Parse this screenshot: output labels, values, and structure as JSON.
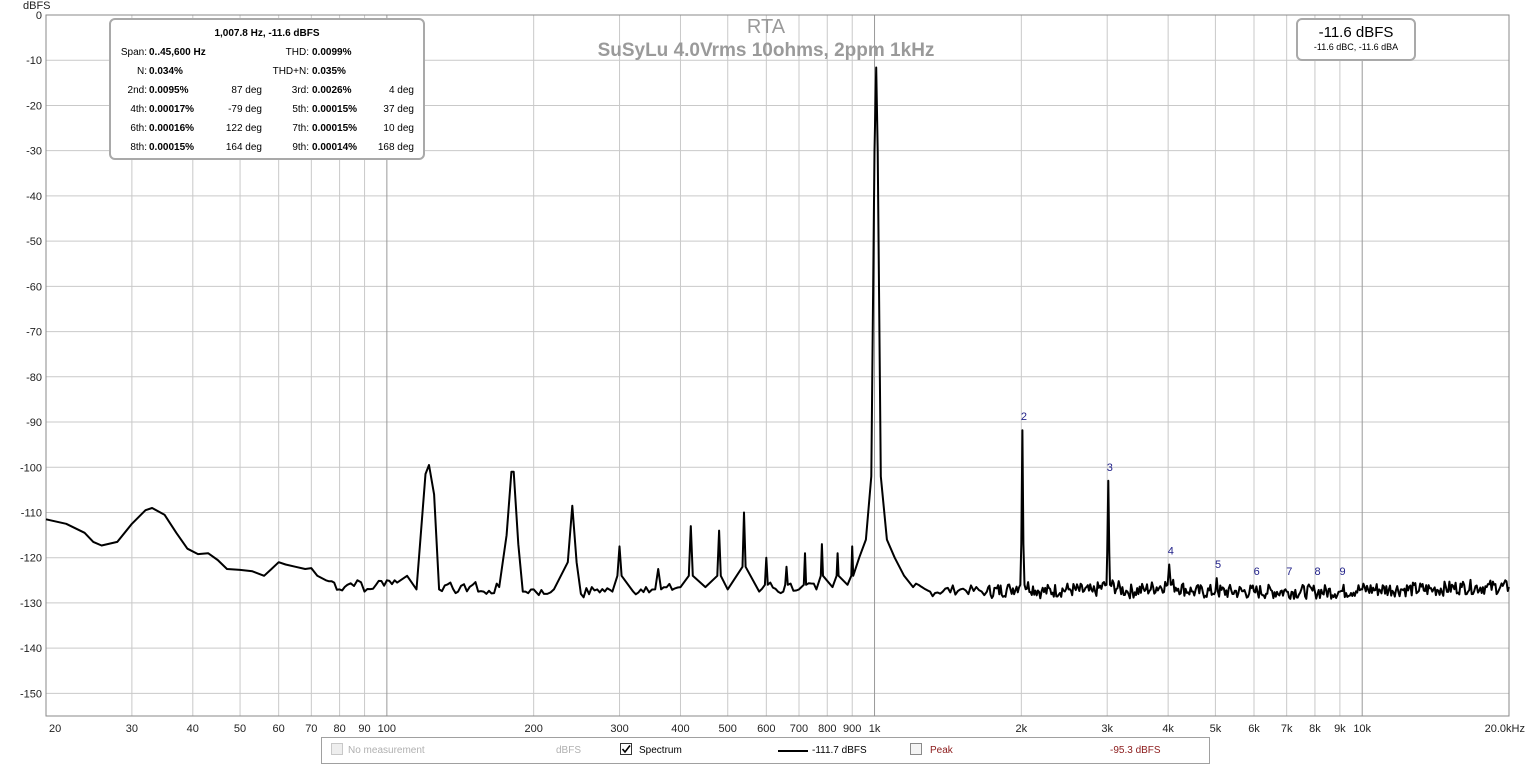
{
  "chart_data": {
    "type": "line",
    "title": "RTA",
    "subtitle": "SuSyLu 4.0Vrms 10ohms, 2ppm 1kHz",
    "ylabel": "dBFS",
    "xscale": "log",
    "xlim": [
      20,
      20000
    ],
    "ylim": [
      -155,
      0
    ],
    "x_tick_labels": [
      "20",
      "30",
      "40",
      "50",
      "60",
      "70",
      "80",
      "90",
      "100",
      "200",
      "300",
      "400",
      "500",
      "600",
      "700",
      "800",
      "900",
      "1k",
      "2k",
      "3k",
      "4k",
      "5k",
      "6k",
      "7k",
      "8k",
      "9k",
      "10k",
      "20.0kHz"
    ],
    "y_tick_labels": [
      "0",
      "-10",
      "-20",
      "-30",
      "-40",
      "-50",
      "-60",
      "-70",
      "-80",
      "-90",
      "-100",
      "-110",
      "-120",
      "-130",
      "-140",
      "-150"
    ],
    "grid": true,
    "series": [
      {
        "name": "Spectrum",
        "color": "#000000",
        "points": [
          [
            20,
            -111.5
          ],
          [
            22,
            -112.5
          ],
          [
            24,
            -114.5
          ],
          [
            25,
            -116.5
          ],
          [
            26,
            -117.3
          ],
          [
            28,
            -116.5
          ],
          [
            30,
            -112.5
          ],
          [
            32,
            -109.5
          ],
          [
            33,
            -109
          ],
          [
            35,
            -110.5
          ],
          [
            37,
            -114.5
          ],
          [
            39,
            -118
          ],
          [
            41,
            -119.2
          ],
          [
            43,
            -119
          ],
          [
            45,
            -120.5
          ],
          [
            47,
            -122.5
          ],
          [
            50,
            -122.7
          ],
          [
            53,
            -123
          ],
          [
            56,
            -124
          ],
          [
            58,
            -122.5
          ],
          [
            60,
            -121
          ],
          [
            62,
            -121.5
          ],
          [
            65,
            -122
          ],
          [
            68,
            -122.5
          ],
          [
            70,
            -122.3
          ],
          [
            72,
            -124
          ],
          [
            75,
            -125
          ],
          [
            78,
            -125.5
          ],
          [
            80,
            -127
          ],
          [
            83,
            -126
          ],
          [
            87,
            -125
          ],
          [
            90,
            -127.5
          ],
          [
            95,
            -126
          ],
          [
            100,
            -125
          ],
          [
            105,
            -125.5
          ],
          [
            110,
            -124
          ],
          [
            115,
            -127
          ],
          [
            120,
            -101.5
          ],
          [
            122,
            -99.5
          ],
          [
            125,
            -106
          ],
          [
            128,
            -127
          ],
          [
            135,
            -125.5
          ],
          [
            140,
            -127.5
          ],
          [
            150,
            -126
          ],
          [
            160,
            -128
          ],
          [
            170,
            -126.5
          ],
          [
            176,
            -115
          ],
          [
            180,
            -101
          ],
          [
            182,
            -101
          ],
          [
            186,
            -117
          ],
          [
            190,
            -127.5
          ],
          [
            200,
            -127
          ],
          [
            210,
            -128
          ],
          [
            220,
            -127
          ],
          [
            235,
            -121
          ],
          [
            240,
            -108.5
          ],
          [
            245,
            -121
          ],
          [
            250,
            -128
          ],
          [
            270,
            -127
          ],
          [
            290,
            -127.5
          ],
          [
            297,
            -124
          ],
          [
            300,
            -117.5
          ],
          [
            303,
            -124
          ],
          [
            320,
            -127.5
          ],
          [
            340,
            -126.5
          ],
          [
            355,
            -127
          ],
          [
            360,
            -122.5
          ],
          [
            365,
            -127
          ],
          [
            400,
            -126.5
          ],
          [
            416,
            -124
          ],
          [
            420,
            -113
          ],
          [
            424,
            -124
          ],
          [
            450,
            -126.5
          ],
          [
            476,
            -124
          ],
          [
            480,
            -114
          ],
          [
            484,
            -124
          ],
          [
            500,
            -127
          ],
          [
            536,
            -122
          ],
          [
            540,
            -110
          ],
          [
            544,
            -122
          ],
          [
            580,
            -127.5
          ],
          [
            596,
            -126
          ],
          [
            600,
            -120
          ],
          [
            604,
            -126
          ],
          [
            650,
            -127.5
          ],
          [
            656,
            -126
          ],
          [
            660,
            -122
          ],
          [
            664,
            -126
          ],
          [
            700,
            -127
          ],
          [
            716,
            -126
          ],
          [
            720,
            -119
          ],
          [
            724,
            -126
          ],
          [
            760,
            -127
          ],
          [
            776,
            -124
          ],
          [
            780,
            -117
          ],
          [
            784,
            -124
          ],
          [
            820,
            -126.5
          ],
          [
            836,
            -124
          ],
          [
            840,
            -119
          ],
          [
            844,
            -124
          ],
          [
            880,
            -126
          ],
          [
            896,
            -124
          ],
          [
            900,
            -117.5
          ],
          [
            904,
            -124
          ],
          [
            930,
            -120
          ],
          [
            960,
            -116
          ],
          [
            985,
            -102
          ],
          [
            1000,
            -30
          ],
          [
            1007.8,
            -11.6
          ],
          [
            1015,
            -30
          ],
          [
            1030,
            -102
          ],
          [
            1060,
            -116
          ],
          [
            1100,
            -120
          ],
          [
            1150,
            -124
          ],
          [
            1200,
            -126.5
          ],
          [
            1300,
            -127.5
          ],
          [
            1500,
            -127
          ],
          [
            1700,
            -127.5
          ],
          [
            1900,
            -127
          ],
          [
            1990,
            -126
          ],
          [
            2000,
            -117
          ],
          [
            2010,
            -91.8
          ],
          [
            2020,
            -117
          ],
          [
            2030,
            -126
          ],
          [
            2200,
            -127.5
          ],
          [
            2500,
            -127
          ],
          [
            2800,
            -127.5
          ],
          [
            2990,
            -126
          ],
          [
            3000,
            -119
          ],
          [
            3015,
            -103
          ],
          [
            3030,
            -119
          ],
          [
            3040,
            -126
          ],
          [
            3300,
            -127.5
          ],
          [
            3600,
            -127
          ],
          [
            3990,
            -126
          ],
          [
            4020,
            -121.5
          ],
          [
            4050,
            -126
          ],
          [
            4500,
            -127.5
          ],
          [
            5000,
            -127.5
          ],
          [
            5030,
            -124.5
          ],
          [
            5060,
            -127.5
          ],
          [
            6000,
            -127.5
          ],
          [
            7000,
            -127.5
          ],
          [
            8000,
            -127.5
          ],
          [
            9000,
            -127.5
          ],
          [
            10000,
            -127
          ],
          [
            12000,
            -127
          ],
          [
            14000,
            -127
          ],
          [
            16000,
            -126.5
          ],
          [
            18000,
            -126.5
          ],
          [
            20000,
            -126.5
          ]
        ]
      }
    ],
    "harmonic_markers": [
      {
        "label": "2",
        "x": 2015,
        "y": -91.8
      },
      {
        "label": "3",
        "x": 3023,
        "y": -103
      },
      {
        "label": "4",
        "x": 4031,
        "y": -121.5
      },
      {
        "label": "5",
        "x": 5039,
        "y": -124.5
      },
      {
        "label": "6",
        "x": 6047,
        "y": -126
      },
      {
        "label": "7",
        "x": 7055,
        "y": -126
      },
      {
        "label": "8",
        "x": 8062,
        "y": -126
      },
      {
        "label": "9",
        "x": 9070,
        "y": -126
      }
    ]
  },
  "stats": {
    "header": "1,007.8 Hz, -11.6 dBFS",
    "span_label": "Span:",
    "span_value": "0..45,600 Hz",
    "thd_label": "THD:",
    "thd_value": "0.0099%",
    "n_label": "N:",
    "n_value": "0.034%",
    "thdn_label": "THD+N:",
    "thdn_value": "0.035%",
    "harmonics": [
      {
        "label": "2nd:",
        "value": "0.0095%",
        "phase": "87 deg"
      },
      {
        "label": "3rd:",
        "value": "0.0026%",
        "phase": "4 deg"
      },
      {
        "label": "4th:",
        "value": "0.00017%",
        "phase": "-79 deg"
      },
      {
        "label": "5th:",
        "value": "0.00015%",
        "phase": "37 deg"
      },
      {
        "label": "6th:",
        "value": "0.00016%",
        "phase": "122 deg"
      },
      {
        "label": "7th:",
        "value": "0.00015%",
        "phase": "10 deg"
      },
      {
        "label": "8th:",
        "value": "0.00015%",
        "phase": "164 deg"
      },
      {
        "label": "9th:",
        "value": "0.00014%",
        "phase": "168 deg"
      }
    ]
  },
  "level_box": {
    "main": "-11.6 dBFS",
    "sub": "-11.6 dBC, -11.6 dBA"
  },
  "legend": {
    "no_measurement_label": "No measurement",
    "no_measurement_unit": "dBFS",
    "spectrum_label": "Spectrum",
    "spectrum_value": "-111.7 dBFS",
    "spectrum_checked": true,
    "peak_label": "Peak",
    "peak_value": "-95.3 dBFS",
    "peak_color": "#8b1a1a",
    "peak_checked": false
  }
}
